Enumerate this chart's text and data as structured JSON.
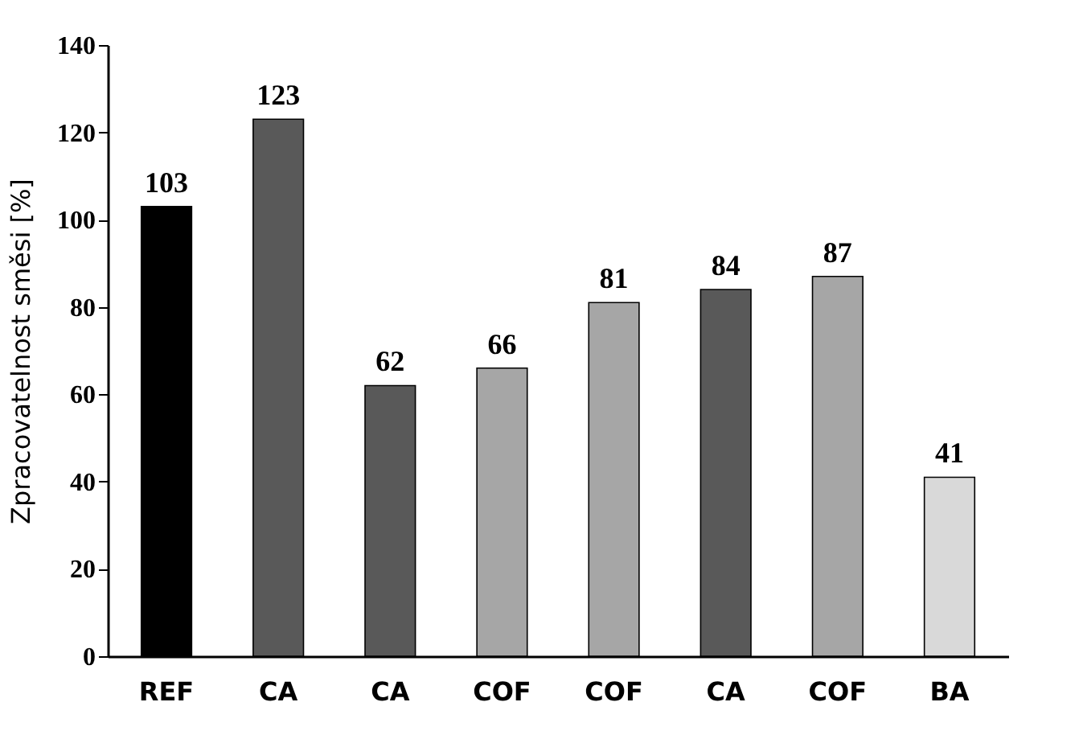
{
  "chart_data": {
    "type": "bar",
    "ylabel": "Zpracovatelnost směsi [%]",
    "categories": [
      "REF",
      "CA",
      "CA",
      "COF",
      "COF",
      "CA",
      "COF",
      "BA"
    ],
    "values": [
      103,
      123,
      62,
      66,
      81,
      84,
      87,
      41
    ],
    "colors": [
      "#000000",
      "#595959",
      "#595959",
      "#a6a6a6",
      "#a6a6a6",
      "#595959",
      "#a6a6a6",
      "#d9d9d9"
    ],
    "ylim": [
      0,
      140
    ],
    "yticks": [
      0,
      20,
      40,
      60,
      80,
      100,
      120,
      140
    ],
    "grid": false,
    "data_labels": true
  }
}
